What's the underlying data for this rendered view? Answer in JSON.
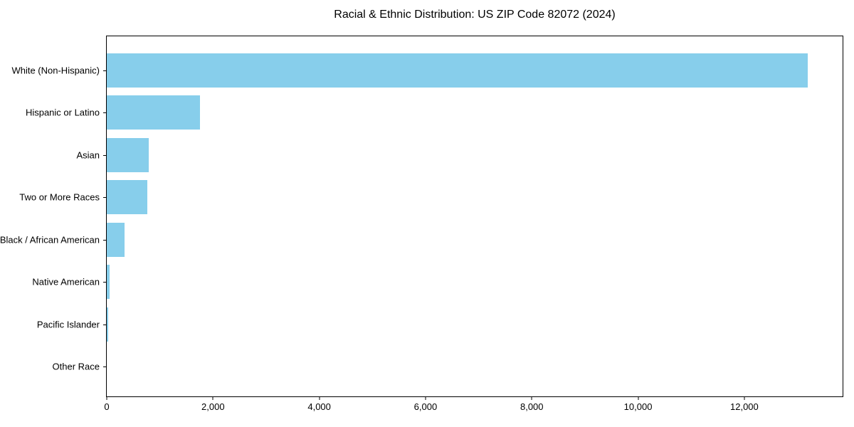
{
  "chart_data": {
    "type": "bar",
    "orientation": "horizontal",
    "title": "Racial & Ethnic Distribution: US ZIP Code 82072 (2024)",
    "categories": [
      "White (Non-Hispanic)",
      "Hispanic or Latino",
      "Asian",
      "Two or More Races",
      "Black / African American",
      "Native American",
      "Pacific Islander",
      "Other Race"
    ],
    "values": [
      13190,
      1750,
      785,
      770,
      340,
      48,
      30,
      0
    ],
    "xlabel": "",
    "ylabel": "",
    "xlim": [
      0,
      13850
    ],
    "xticks": [
      0,
      2000,
      4000,
      6000,
      8000,
      10000,
      12000
    ],
    "xtick_labels": [
      "0",
      "2,000",
      "4,000",
      "6,000",
      "8,000",
      "10,000",
      "12,000"
    ],
    "bar_color": "#87CEEB",
    "grid": false,
    "legend": null,
    "background_color": "#ffffff",
    "text_color": "#000000"
  }
}
